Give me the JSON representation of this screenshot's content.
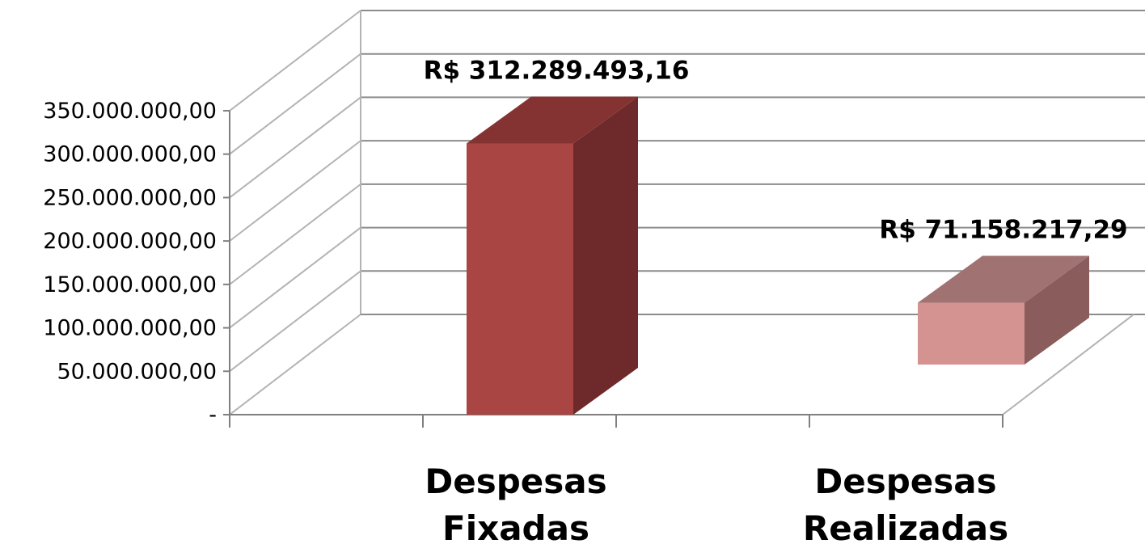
{
  "chart_data": {
    "type": "bar",
    "categories": [
      "Despesas Fixadas",
      "Despesas Realizadas"
    ],
    "category_lines": [
      [
        "Despesas",
        "Fixadas"
      ],
      [
        "Despesas",
        "Realizadas"
      ]
    ],
    "values": [
      312289493.16,
      71158217.29
    ],
    "data_labels": [
      "R$ 312.289.493,16",
      "R$ 71.158.217,29"
    ],
    "ylim": [
      0,
      350000000
    ],
    "ytick_values": [
      0,
      50000000,
      100000000,
      150000000,
      200000000,
      250000000,
      300000000,
      350000000
    ],
    "ytick_labels": [
      "-",
      "50.000.000,00",
      "100.000.000,00",
      "150.000.000,00",
      "200.000.000,00",
      "250.000.000,00",
      "300.000.000,00",
      "350.000.000,00"
    ],
    "grid": true,
    "style": "3d-column",
    "colors": [
      {
        "front": "#a94542",
        "side": "#6e2a2a",
        "top": "#853332"
      },
      {
        "front": "#d49290",
        "side": "#8a5c5c",
        "top": "#a07272"
      }
    ],
    "title": "",
    "xlabel": "",
    "ylabel": ""
  }
}
